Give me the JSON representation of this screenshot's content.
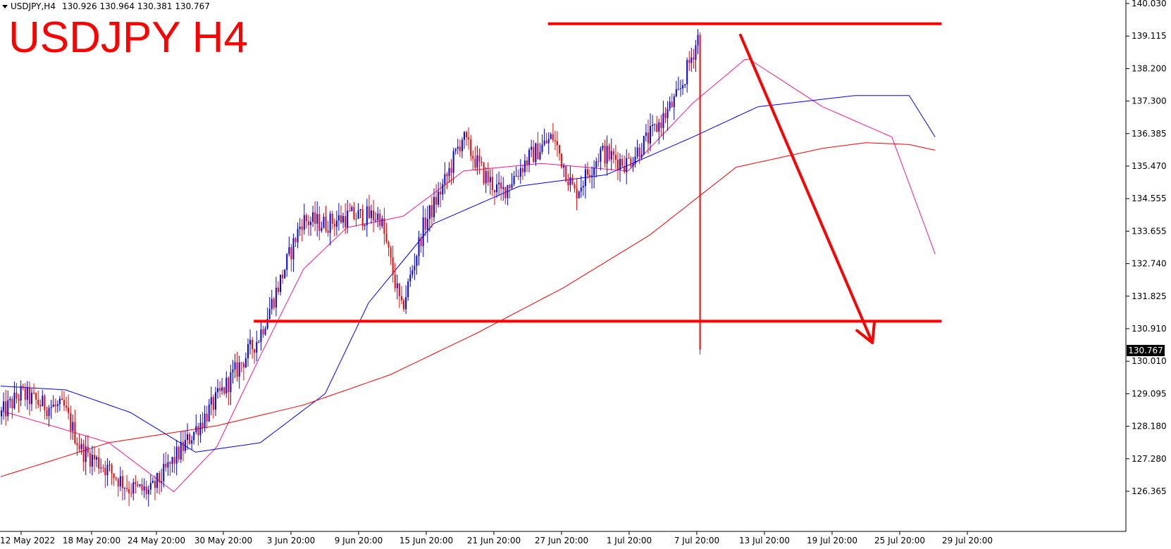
{
  "header": {
    "symbol_label": "USDJPY,H4",
    "ohlc_text": "130.926 130.964 130.381 130.767"
  },
  "annotation": {
    "big_title": "USDJPY H4",
    "color": "#ff0000"
  },
  "colors": {
    "bull": "#0000ff",
    "bear": "#ff0000",
    "ma_fast": "#ff1493",
    "ma_mid": "#0000ff",
    "ma_slow": "#ff0000",
    "price_box_bg": "#000000",
    "price_box_text": "#ffffff",
    "axis": "#000000"
  },
  "chart_data": {
    "type": "candlestick",
    "title": "USDJPY H4",
    "y_axis": {
      "position": "right",
      "range": [
        125.95,
        140.03
      ],
      "ticks": [
        "140.030",
        "139.115",
        "138.200",
        "137.300",
        "136.385",
        "135.470",
        "134.555",
        "133.655",
        "132.740",
        "131.825",
        "130.910",
        "130.010",
        "129.095",
        "128.180",
        "127.280",
        "126.365"
      ]
    },
    "x_axis": {
      "tick_labels": [
        "12 May 2022",
        "18 May 20:00",
        "24 May 20:00",
        "30 May 20:00",
        "3 Jun 20:00",
        "9 Jun 20:00",
        "15 Jun 20:00",
        "21 Jun 20:00",
        "27 Jun 20:00",
        "1 Jul 20:00",
        "7 Jul 20:00",
        "13 Jul 20:00",
        "19 Jul 20:00",
        "25 Jul 20:00",
        "29 Jul 20:00"
      ],
      "total_bars": 324
    },
    "current_price": "130.767",
    "price_path": [
      [
        0,
        129.0
      ],
      [
        10,
        129.6
      ],
      [
        20,
        129.3
      ],
      [
        30,
        129.2
      ],
      [
        38,
        128.1
      ],
      [
        48,
        127.7
      ],
      [
        60,
        127.1
      ],
      [
        70,
        127.0
      ],
      [
        84,
        128.1
      ],
      [
        100,
        129.4
      ],
      [
        120,
        131.1
      ],
      [
        130,
        132.6
      ],
      [
        140,
        134.2
      ],
      [
        150,
        134.1
      ],
      [
        162,
        134.3
      ],
      [
        176,
        134.3
      ],
      [
        186,
        131.8
      ],
      [
        196,
        134.0
      ],
      [
        206,
        135.2
      ],
      [
        214,
        136.4
      ],
      [
        224,
        135.4
      ],
      [
        232,
        134.9
      ],
      [
        244,
        135.8
      ],
      [
        256,
        136.4
      ],
      [
        266,
        134.9
      ],
      [
        278,
        136.0
      ],
      [
        290,
        135.7
      ],
      [
        302,
        136.5
      ],
      [
        314,
        137.5
      ],
      [
        324,
        139.2
      ],
      [
        334,
        138.6
      ],
      [
        344,
        138.1
      ],
      [
        356,
        138.3
      ],
      [
        366,
        137.2
      ],
      [
        376,
        136.2
      ],
      [
        390,
        136.6
      ],
      [
        402,
        136.3
      ],
      [
        412,
        134.5
      ],
      [
        422,
        133.3
      ],
      [
        430,
        132.0
      ],
      [
        432,
        131.5
      ],
      [
        434,
        130.9
      ]
    ],
    "moving_averages": [
      {
        "label": "fast",
        "color": "#ff1493",
        "points": [
          [
            0,
            129.15
          ],
          [
            50,
            128.3
          ],
          [
            80,
            127.0
          ],
          [
            100,
            128.2
          ],
          [
            120,
            130.6
          ],
          [
            140,
            132.9
          ],
          [
            160,
            134.0
          ],
          [
            186,
            134.3
          ],
          [
            214,
            135.5
          ],
          [
            250,
            135.7
          ],
          [
            290,
            135.5
          ],
          [
            320,
            137.3
          ],
          [
            345,
            138.5
          ],
          [
            380,
            137.2
          ],
          [
            412,
            136.4
          ],
          [
            432,
            133.3
          ]
        ]
      },
      {
        "label": "mid",
        "color": "#0000ff",
        "points": [
          [
            0,
            129.8
          ],
          [
            30,
            129.7
          ],
          [
            60,
            129.1
          ],
          [
            90,
            128.05
          ],
          [
            120,
            128.3
          ],
          [
            150,
            129.6
          ],
          [
            170,
            132.0
          ],
          [
            200,
            134.1
          ],
          [
            240,
            135.1
          ],
          [
            280,
            135.4
          ],
          [
            320,
            136.4
          ],
          [
            350,
            137.2
          ],
          [
            395,
            137.5
          ],
          [
            420,
            137.5
          ],
          [
            432,
            136.4
          ]
        ]
      },
      {
        "label": "slow",
        "color": "#ff0000",
        "points": [
          [
            0,
            127.4
          ],
          [
            50,
            128.3
          ],
          [
            100,
            128.75
          ],
          [
            140,
            129.3
          ],
          [
            180,
            130.1
          ],
          [
            220,
            131.2
          ],
          [
            260,
            132.4
          ],
          [
            300,
            133.8
          ],
          [
            340,
            135.6
          ],
          [
            380,
            136.1
          ],
          [
            400,
            136.25
          ],
          [
            420,
            136.2
          ],
          [
            432,
            136.05
          ]
        ]
      }
    ],
    "annotations": [
      {
        "kind": "horizontal",
        "label": "resistance",
        "price": 139.4,
        "from_bar": 253,
        "to_bar": 435
      },
      {
        "kind": "horizontal",
        "label": "support",
        "price": 131.52,
        "from_bar": 117,
        "to_bar": 435
      },
      {
        "kind": "arrow",
        "label": "down-arrow",
        "from": [
          342,
          139.1
        ],
        "to": [
          403,
          130.95
        ]
      }
    ]
  }
}
